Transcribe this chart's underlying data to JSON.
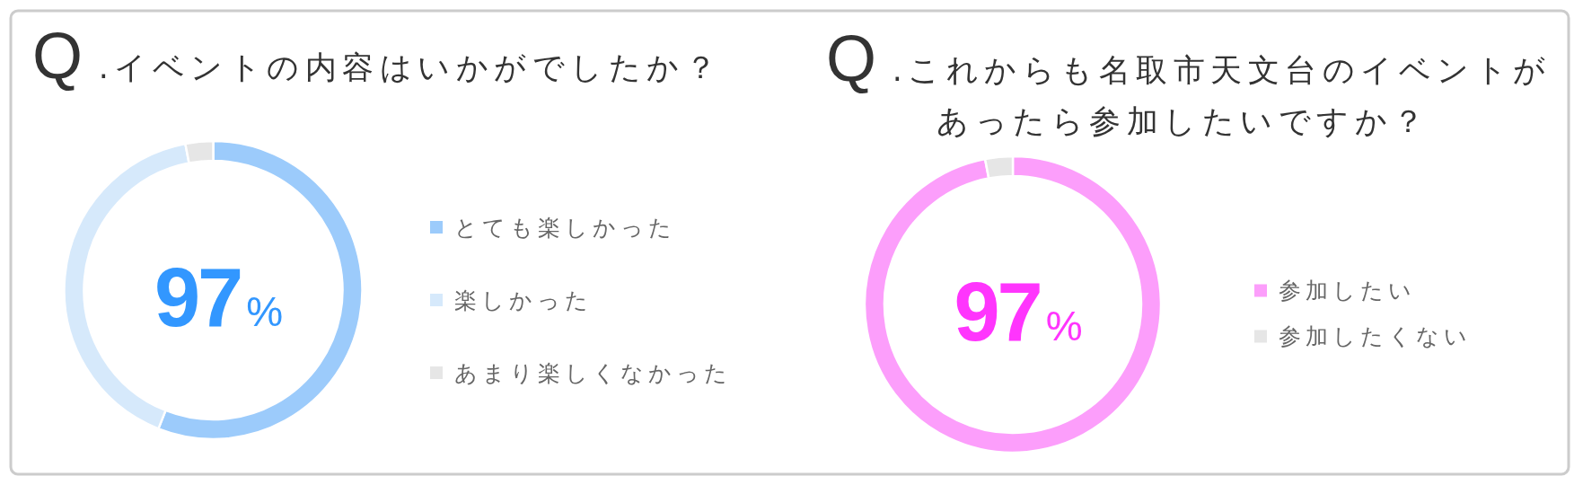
{
  "chart_data": [
    {
      "type": "donut",
      "title": "Q .イベントの内容はいかがでしたか？",
      "categories": [
        "とても楽しかった",
        "楽しかった",
        "あまり楽しくなかった"
      ],
      "values": [
        56,
        41,
        3
      ],
      "colors": [
        "#9ccbfb",
        "#d6e9fb",
        "#e6e6e6"
      ],
      "legend": "right",
      "annotations": [
        "97%"
      ]
    },
    {
      "type": "donut",
      "title": "Q .これからも名取市天文台のイベントがあったら参加したいですか？",
      "categories": [
        "参加したい",
        "参加したくない"
      ],
      "values": [
        97,
        3
      ],
      "colors": [
        "#fc9efb",
        "#e6e6e6"
      ],
      "legend": "right",
      "annotations": [
        "97%"
      ]
    }
  ]
}
